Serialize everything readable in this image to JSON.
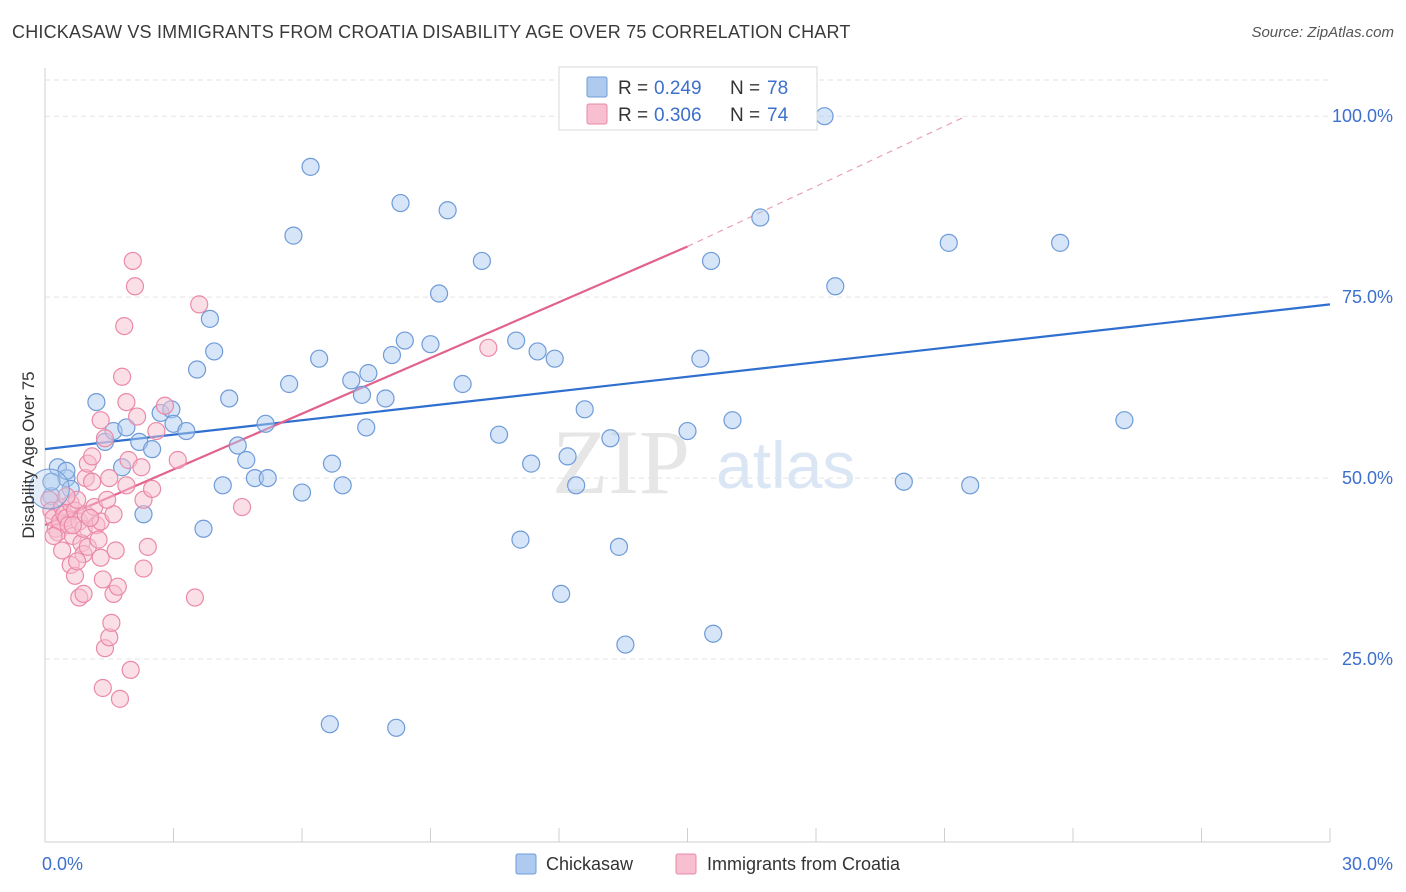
{
  "title": "CHICKASAW VS IMMIGRANTS FROM CROATIA DISABILITY AGE OVER 75 CORRELATION CHART",
  "source": "Source: ZipAtlas.com",
  "watermark": {
    "zip": "ZIP",
    "atlas": "atlas"
  },
  "legend": {
    "r_label": "R =",
    "n_label": "N =",
    "series1": {
      "r": "0.249",
      "n": "78"
    },
    "series2": {
      "r": "0.306",
      "n": "74"
    }
  },
  "colors": {
    "blue_fill": "#aecbef",
    "blue_stroke": "#6f9bd8",
    "blue_line": "#2f6fcf",
    "pink_fill": "#f7bfd0",
    "pink_stroke": "#ea8aa8",
    "pink_line": "#e2628e",
    "grid": "#e3e3e3",
    "axis_label": "#3d6fcc"
  },
  "chart_data": {
    "type": "scatter",
    "title": "CHICKASAW VS IMMIGRANTS FROM CROATIA DISABILITY AGE OVER 75 CORRELATION CHART",
    "xlabel": "",
    "ylabel": "Disability Age Over 75",
    "xlim": [
      0,
      30
    ],
    "ylim": [
      0,
      105
    ],
    "x_tick_labels": [
      "0.0%",
      "30.0%"
    ],
    "y_tick_labels": [
      "25.0%",
      "50.0%",
      "75.0%",
      "100.0%"
    ],
    "y_ticks": [
      25,
      50,
      75,
      100
    ],
    "grid": true,
    "legend_position": "top-center",
    "series": [
      {
        "name": "Chickasaw",
        "color": "#aecbef",
        "trend": {
          "x": [
            0,
            30
          ],
          "y": [
            54,
            74
          ]
        },
        "points": [
          [
            0.15,
            47.5
          ],
          [
            0.3,
            51.5
          ],
          [
            0.5,
            50.0
          ],
          [
            0.6,
            48.5
          ],
          [
            0.5,
            51.0
          ],
          [
            1.2,
            60.5
          ],
          [
            1.4,
            55.0
          ],
          [
            1.6,
            56.5
          ],
          [
            1.8,
            51.5
          ],
          [
            1.9,
            57.0
          ],
          [
            2.2,
            55.0
          ],
          [
            2.3,
            45.0
          ],
          [
            2.5,
            54.0
          ],
          [
            2.7,
            59.0
          ],
          [
            2.95,
            59.5
          ],
          [
            3.0,
            57.5
          ],
          [
            3.3,
            56.5
          ],
          [
            3.55,
            65.0
          ],
          [
            3.7,
            43.0
          ],
          [
            3.85,
            72.0
          ],
          [
            3.95,
            67.5
          ],
          [
            4.15,
            49.0
          ],
          [
            4.3,
            61.0
          ],
          [
            4.5,
            54.5
          ],
          [
            4.7,
            52.5
          ],
          [
            4.9,
            50.0
          ],
          [
            5.2,
            50.0
          ],
          [
            5.15,
            57.5
          ],
          [
            5.7,
            63.0
          ],
          [
            5.8,
            83.5
          ],
          [
            6.0,
            48.0
          ],
          [
            6.2,
            93.0
          ],
          [
            6.4,
            66.5
          ],
          [
            6.65,
            16.0
          ],
          [
            6.7,
            52.0
          ],
          [
            6.95,
            49.0
          ],
          [
            7.15,
            63.5
          ],
          [
            7.4,
            61.5
          ],
          [
            7.5,
            57.0
          ],
          [
            7.55,
            64.5
          ],
          [
            7.95,
            61.0
          ],
          [
            8.1,
            67.0
          ],
          [
            8.3,
            88.0
          ],
          [
            8.4,
            69.0
          ],
          [
            8.2,
            15.5
          ],
          [
            9.2,
            75.5
          ],
          [
            9.0,
            68.5
          ],
          [
            9.4,
            87.0
          ],
          [
            9.75,
            63.0
          ],
          [
            10.2,
            80.0
          ],
          [
            10.6,
            56.0
          ],
          [
            11.0,
            69.0
          ],
          [
            11.1,
            41.5
          ],
          [
            11.35,
            52.0
          ],
          [
            11.5,
            67.5
          ],
          [
            11.9,
            66.5
          ],
          [
            12.2,
            53.0
          ],
          [
            12.4,
            49.0
          ],
          [
            12.05,
            34.0
          ],
          [
            12.6,
            59.5
          ],
          [
            13.2,
            55.5
          ],
          [
            13.4,
            40.5
          ],
          [
            13.55,
            27.0
          ],
          [
            15.0,
            56.5
          ],
          [
            15.3,
            66.5
          ],
          [
            15.55,
            80.0
          ],
          [
            15.6,
            28.5
          ],
          [
            16.05,
            58.0
          ],
          [
            16.7,
            86.0
          ],
          [
            18.2,
            100.0
          ],
          [
            18.45,
            76.5
          ],
          [
            20.05,
            49.5
          ],
          [
            21.1,
            82.5
          ],
          [
            21.6,
            49.0
          ],
          [
            23.7,
            82.5
          ],
          [
            25.2,
            58.0
          ],
          [
            16.3,
            100.0
          ],
          [
            0.15,
            49.5
          ]
        ]
      },
      {
        "name": "Immigrants from Croatia",
        "color": "#f7bfd0",
        "trend": {
          "x": [
            0,
            15
          ],
          "y": [
            43.5,
            82
          ]
        },
        "trend_dashed": {
          "x": [
            15,
            21.5
          ],
          "y": [
            82,
            100
          ]
        },
        "points": [
          [
            0.1,
            47.0
          ],
          [
            0.15,
            45.5
          ],
          [
            0.2,
            44.5
          ],
          [
            0.25,
            43.0
          ],
          [
            0.3,
            42.5
          ],
          [
            0.35,
            44.0
          ],
          [
            0.4,
            46.0
          ],
          [
            0.45,
            45.0
          ],
          [
            0.5,
            44.5
          ],
          [
            0.55,
            43.5
          ],
          [
            0.6,
            46.5
          ],
          [
            0.65,
            42.0
          ],
          [
            0.7,
            45.5
          ],
          [
            0.75,
            47.0
          ],
          [
            0.8,
            44.0
          ],
          [
            0.85,
            41.0
          ],
          [
            0.9,
            43.0
          ],
          [
            0.95,
            45.0
          ],
          [
            0.6,
            38.0
          ],
          [
            0.7,
            36.5
          ],
          [
            0.8,
            33.5
          ],
          [
            0.9,
            34.0
          ],
          [
            0.9,
            39.5
          ],
          [
            1.0,
            40.5
          ],
          [
            0.95,
            50.0
          ],
          [
            1.0,
            52.0
          ],
          [
            1.1,
            49.5
          ],
          [
            1.15,
            46.0
          ],
          [
            1.2,
            43.5
          ],
          [
            1.25,
            41.5
          ],
          [
            1.3,
            39.0
          ],
          [
            1.35,
            36.0
          ],
          [
            1.4,
            26.5
          ],
          [
            1.5,
            28.0
          ],
          [
            1.55,
            30.0
          ],
          [
            1.6,
            34.0
          ],
          [
            1.35,
            21.0
          ],
          [
            1.3,
            44.0
          ],
          [
            1.3,
            58.0
          ],
          [
            1.4,
            55.5
          ],
          [
            1.5,
            50.0
          ],
          [
            1.6,
            45.0
          ],
          [
            1.65,
            40.0
          ],
          [
            1.7,
            35.0
          ],
          [
            1.75,
            19.5
          ],
          [
            1.8,
            64.0
          ],
          [
            1.85,
            71.0
          ],
          [
            1.9,
            60.5
          ],
          [
            1.95,
            52.5
          ],
          [
            2.0,
            23.5
          ],
          [
            2.1,
            76.5
          ],
          [
            2.05,
            80.0
          ],
          [
            2.15,
            58.5
          ],
          [
            2.25,
            51.5
          ],
          [
            2.3,
            47.0
          ],
          [
            2.4,
            40.5
          ],
          [
            2.5,
            48.5
          ],
          [
            2.3,
            37.5
          ],
          [
            2.6,
            56.5
          ],
          [
            2.8,
            60.0
          ],
          [
            3.1,
            52.5
          ],
          [
            3.5,
            33.5
          ],
          [
            3.6,
            74.0
          ],
          [
            4.6,
            46.0
          ],
          [
            10.35,
            68.0
          ],
          [
            0.5,
            47.5
          ],
          [
            0.65,
            43.5
          ],
          [
            0.75,
            38.5
          ],
          [
            1.1,
            53.0
          ],
          [
            1.9,
            49.0
          ],
          [
            0.2,
            42.0
          ],
          [
            0.4,
            40.0
          ],
          [
            1.05,
            44.5
          ],
          [
            1.45,
            47.0
          ]
        ]
      }
    ]
  },
  "bottom_legend": {
    "series1": "Chickasaw",
    "series2": "Immigrants from Croatia"
  }
}
